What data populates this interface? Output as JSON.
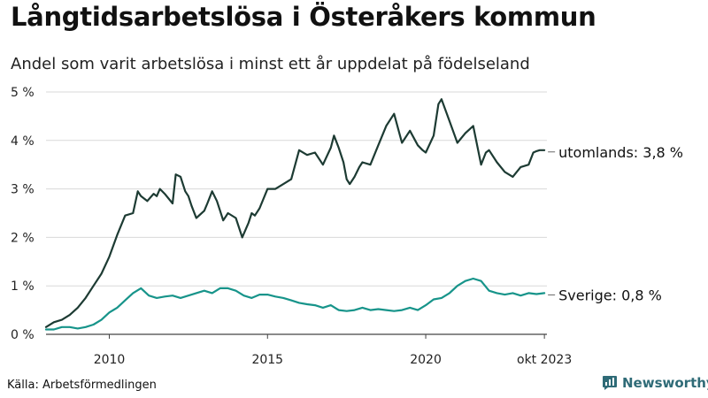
{
  "chart_data": {
    "type": "line",
    "title": "Långtidsarbetslösa i Österåkers kommun",
    "subtitle": "Andel som varit arbetslösa i minst ett år uppdelat på födelseland",
    "xlabel": "",
    "ylabel": "",
    "x_range": [
      2008.0,
      2023.83
    ],
    "ylim": [
      0,
      5
    ],
    "y_ticks": [
      0,
      1,
      2,
      3,
      4,
      5
    ],
    "y_tick_labels": [
      "0 %",
      "1 %",
      "2 %",
      "3 %",
      "4 %",
      "5 %"
    ],
    "x_ticks": [
      2010,
      2015,
      2020,
      2023.75
    ],
    "x_tick_labels": [
      "2010",
      "2015",
      "2020",
      "okt 2023"
    ],
    "grid": "horizontal",
    "source": "Källa: Arbetsförmedlingen",
    "series": [
      {
        "name": "utomlands",
        "end_label": "utomlands: 3,8 %",
        "color": "#1d3b33",
        "x": [
          2008.0,
          2008.25,
          2008.5,
          2008.75,
          2009.0,
          2009.25,
          2009.5,
          2009.75,
          2010.0,
          2010.25,
          2010.5,
          2010.75,
          2010.9,
          2011.0,
          2011.2,
          2011.4,
          2011.5,
          2011.6,
          2011.75,
          2012.0,
          2012.1,
          2012.25,
          2012.4,
          2012.5,
          2012.6,
          2012.75,
          2013.0,
          2013.1,
          2013.25,
          2013.4,
          2013.5,
          2013.6,
          2013.75,
          2014.0,
          2014.2,
          2014.4,
          2014.5,
          2014.6,
          2014.75,
          2015.0,
          2015.25,
          2015.5,
          2015.75,
          2016.0,
          2016.25,
          2016.5,
          2016.75,
          2017.0,
          2017.1,
          2017.25,
          2017.4,
          2017.5,
          2017.6,
          2017.75,
          2017.9,
          2018.0,
          2018.25,
          2018.5,
          2018.75,
          2019.0,
          2019.25,
          2019.5,
          2019.75,
          2019.9,
          2020.0,
          2020.25,
          2020.4,
          2020.5,
          2020.75,
          2021.0,
          2021.25,
          2021.5,
          2021.75,
          2021.9,
          2022.0,
          2022.25,
          2022.5,
          2022.75,
          2023.0,
          2023.25,
          2023.4,
          2023.5,
          2023.6,
          2023.75
        ],
        "values": [
          0.15,
          0.25,
          0.3,
          0.4,
          0.55,
          0.75,
          1.0,
          1.25,
          1.6,
          2.05,
          2.45,
          2.5,
          2.95,
          2.85,
          2.75,
          2.9,
          2.85,
          3.0,
          2.9,
          2.7,
          3.3,
          3.25,
          2.95,
          2.85,
          2.65,
          2.4,
          2.55,
          2.7,
          2.95,
          2.75,
          2.55,
          2.35,
          2.5,
          2.4,
          2.0,
          2.3,
          2.5,
          2.45,
          2.6,
          3.0,
          3.0,
          3.1,
          3.2,
          3.8,
          3.7,
          3.75,
          3.5,
          3.85,
          4.1,
          3.85,
          3.55,
          3.2,
          3.1,
          3.25,
          3.45,
          3.55,
          3.5,
          3.9,
          4.3,
          4.55,
          3.95,
          4.2,
          3.9,
          3.8,
          3.75,
          4.1,
          4.75,
          4.85,
          4.4,
          3.95,
          4.15,
          4.3,
          3.5,
          3.75,
          3.8,
          3.55,
          3.35,
          3.25,
          3.45,
          3.5,
          3.75,
          3.78,
          3.8,
          3.8
        ]
      },
      {
        "name": "Sverige",
        "end_label": "Sverige: 0,8 %",
        "color": "#17948a",
        "x": [
          2008.0,
          2008.25,
          2008.5,
          2008.75,
          2009.0,
          2009.25,
          2009.5,
          2009.75,
          2010.0,
          2010.25,
          2010.5,
          2010.75,
          2011.0,
          2011.25,
          2011.5,
          2011.75,
          2012.0,
          2012.25,
          2012.5,
          2012.75,
          2013.0,
          2013.25,
          2013.5,
          2013.75,
          2014.0,
          2014.25,
          2014.5,
          2014.75,
          2015.0,
          2015.25,
          2015.5,
          2015.75,
          2016.0,
          2016.25,
          2016.5,
          2016.75,
          2017.0,
          2017.25,
          2017.5,
          2017.75,
          2018.0,
          2018.25,
          2018.5,
          2018.75,
          2019.0,
          2019.25,
          2019.5,
          2019.75,
          2020.0,
          2020.25,
          2020.5,
          2020.75,
          2021.0,
          2021.25,
          2021.5,
          2021.75,
          2022.0,
          2022.25,
          2022.5,
          2022.75,
          2023.0,
          2023.25,
          2023.5,
          2023.75
        ],
        "values": [
          0.1,
          0.1,
          0.15,
          0.15,
          0.12,
          0.15,
          0.2,
          0.3,
          0.45,
          0.55,
          0.7,
          0.85,
          0.95,
          0.8,
          0.75,
          0.78,
          0.8,
          0.75,
          0.8,
          0.85,
          0.9,
          0.85,
          0.95,
          0.95,
          0.9,
          0.8,
          0.75,
          0.82,
          0.82,
          0.78,
          0.75,
          0.7,
          0.65,
          0.62,
          0.6,
          0.55,
          0.6,
          0.5,
          0.48,
          0.5,
          0.55,
          0.5,
          0.52,
          0.5,
          0.48,
          0.5,
          0.55,
          0.5,
          0.6,
          0.72,
          0.75,
          0.85,
          1.0,
          1.1,
          1.15,
          1.1,
          0.9,
          0.85,
          0.82,
          0.85,
          0.8,
          0.85,
          0.83,
          0.85
        ]
      }
    ]
  },
  "brand": {
    "name": "Newsworthy",
    "icon": "newsworthy-logo-icon",
    "color": "#2f6b77"
  }
}
